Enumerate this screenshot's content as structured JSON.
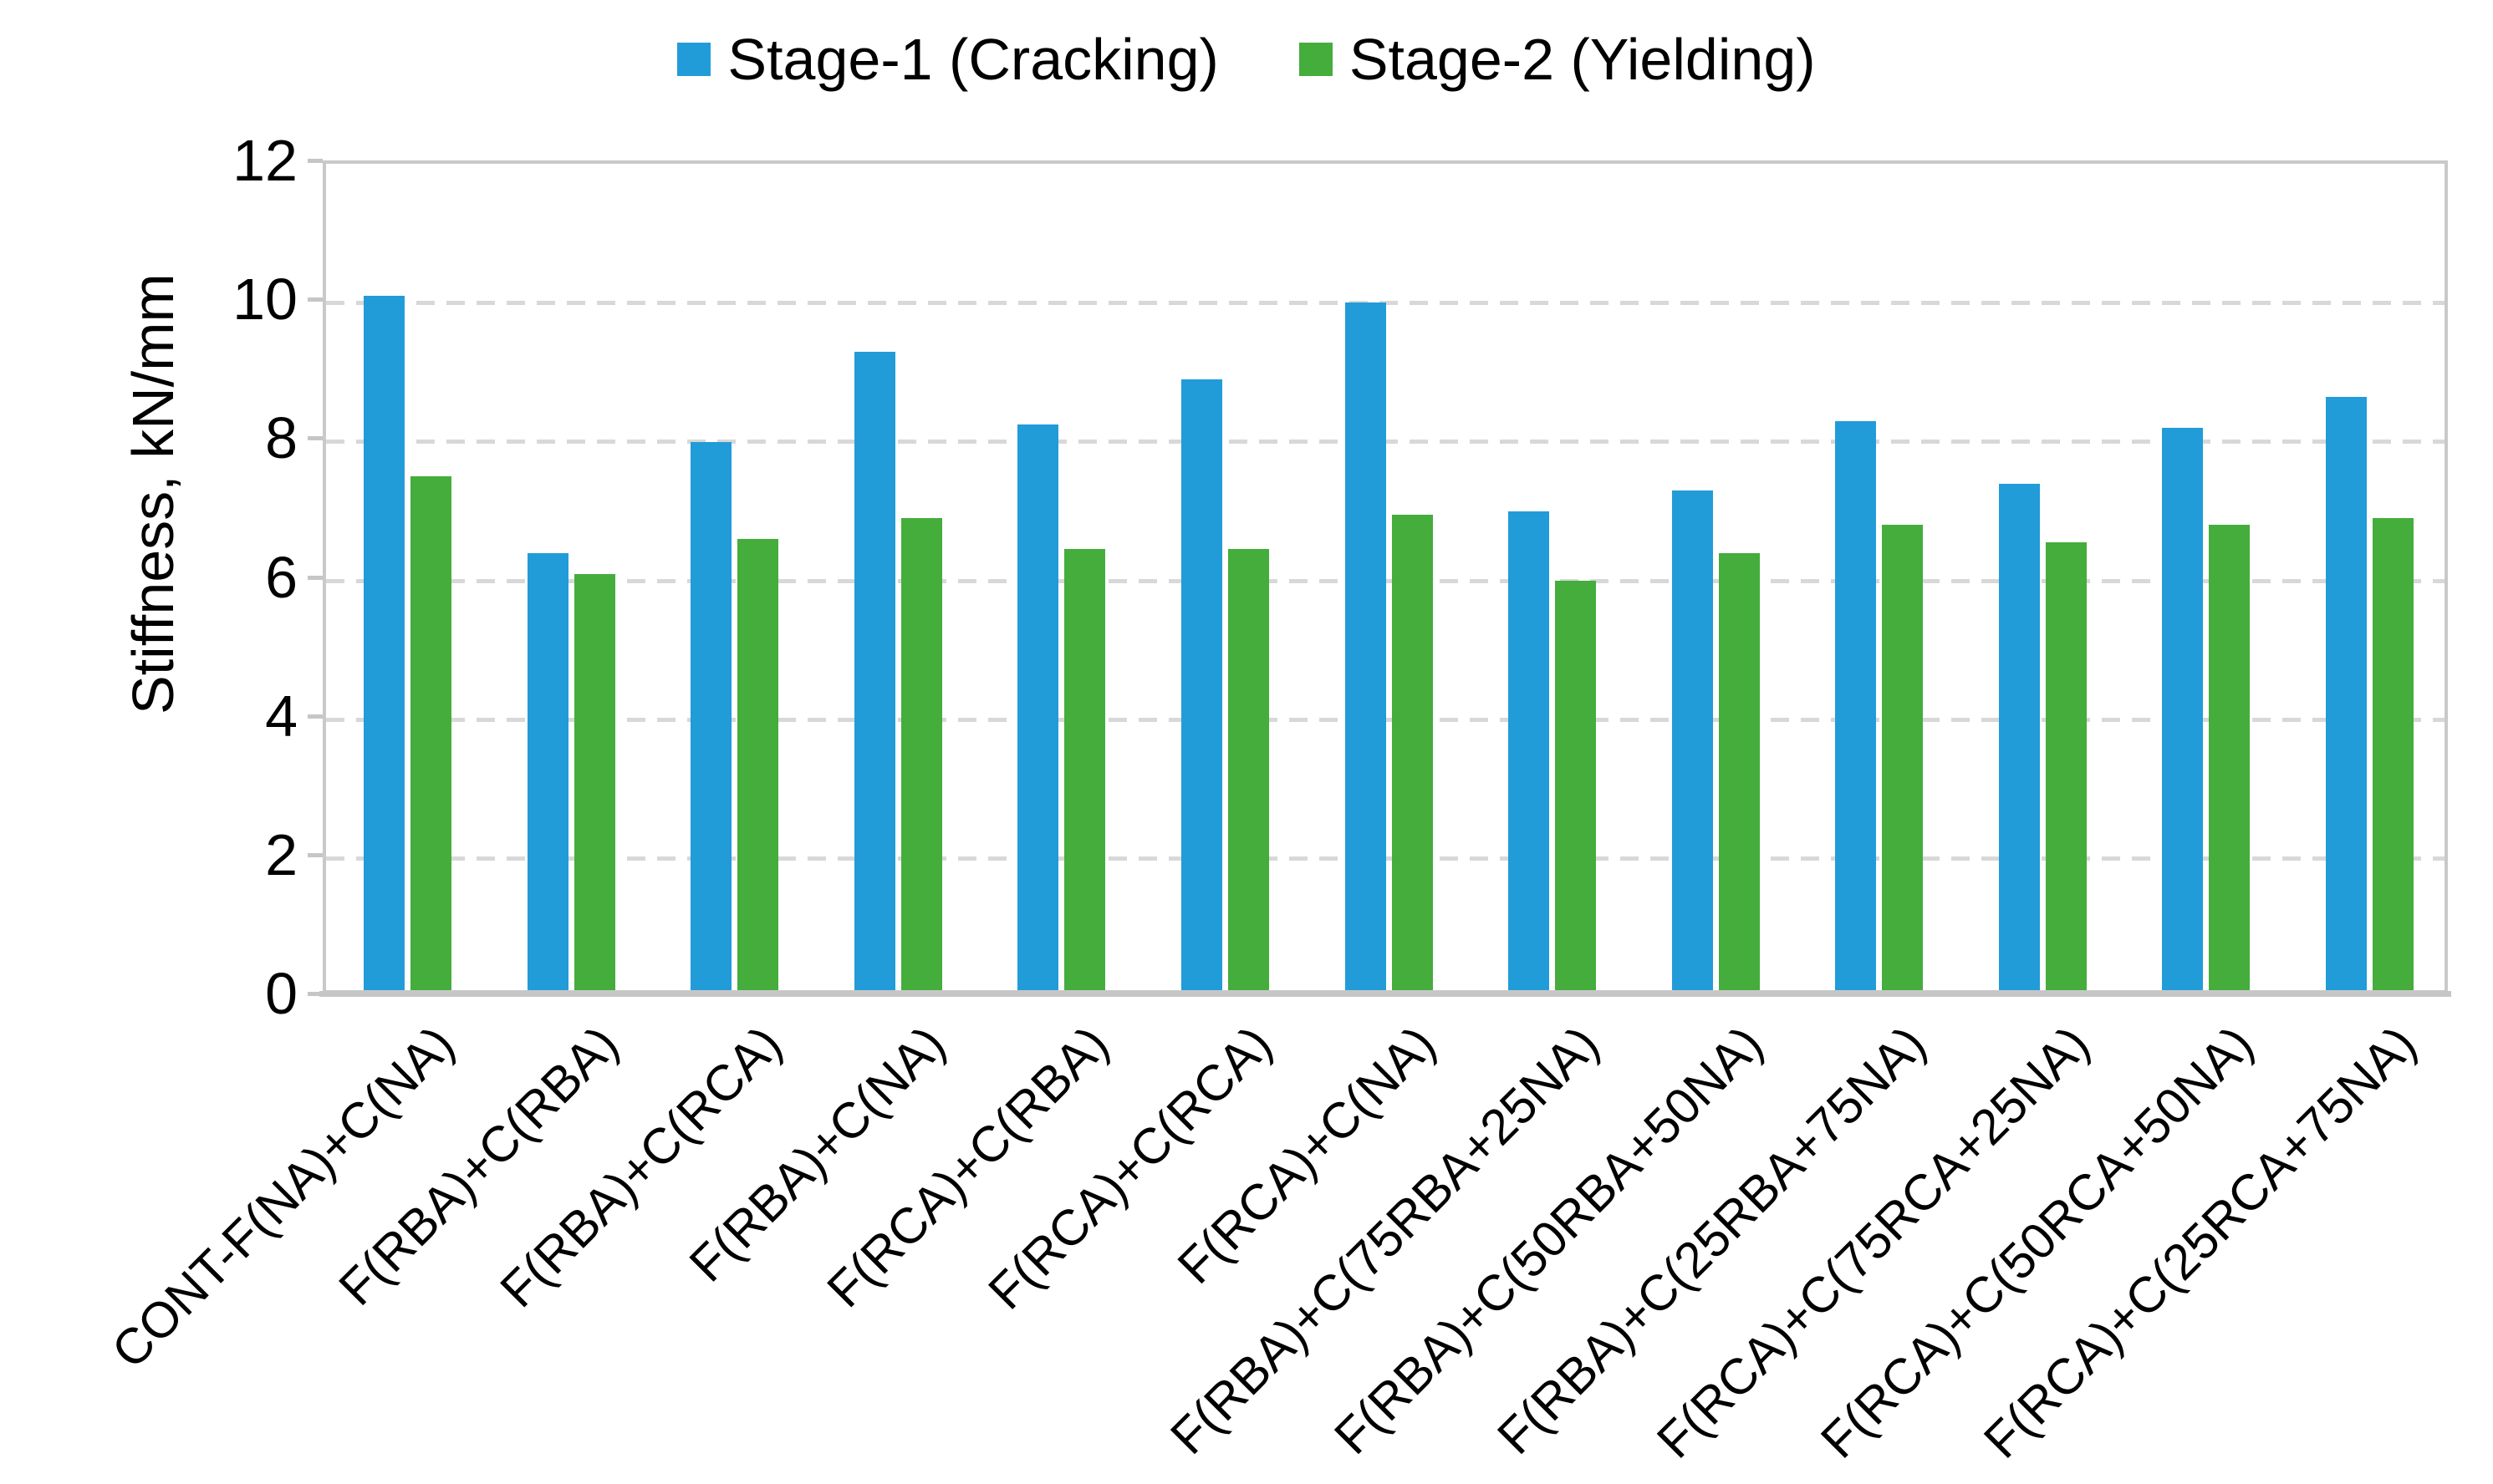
{
  "chart_data": {
    "type": "bar",
    "title": "",
    "xlabel": "",
    "ylabel": "Stiffness, kN/mm",
    "ylim": [
      0,
      12
    ],
    "yticks": [
      0,
      2,
      4,
      6,
      8,
      10,
      12
    ],
    "grid": "horizontal-dashed",
    "legend_position": "top-center",
    "categories": [
      "CONT-F(NA)+C(NA)",
      "F(RBA)+C(RBA)",
      "F(RBA)+C(RCA)",
      "F(RBA)+C(NA)",
      "F(RCA)+C(RBA)",
      "F(RCA)+C(RCA)",
      "F(RCA)+C(NA)",
      "F(RBA)+C(75RBA+25NA)",
      "F(RBA)+C(50RBA+50NA)",
      "F(RBA)+C(25RBA+75NA)",
      "F(RCA)+C(75RCA+25NA)",
      "F(RCA)+C(50RCA+50NA)",
      "F(RCA)+C(25RCA+75NA)"
    ],
    "series": [
      {
        "name": "Stage-1 (Cracking)",
        "color": "#219cd8",
        "values": [
          10.0,
          6.3,
          7.9,
          9.2,
          8.15,
          8.8,
          9.9,
          6.9,
          7.2,
          8.2,
          7.3,
          8.1,
          8.55
        ]
      },
      {
        "name": "Stage-2 (Yielding)",
        "color": "#44ad3c",
        "values": [
          7.4,
          6.0,
          6.5,
          6.8,
          6.35,
          6.35,
          6.85,
          5.9,
          6.3,
          6.7,
          6.45,
          6.7,
          6.8
        ]
      }
    ]
  },
  "colors": {
    "plot_border": "#c9c9c9",
    "axis_line": "#c6c6c6",
    "gridline": "#d8d8d8",
    "text": "#000000",
    "background": "#ffffff"
  }
}
